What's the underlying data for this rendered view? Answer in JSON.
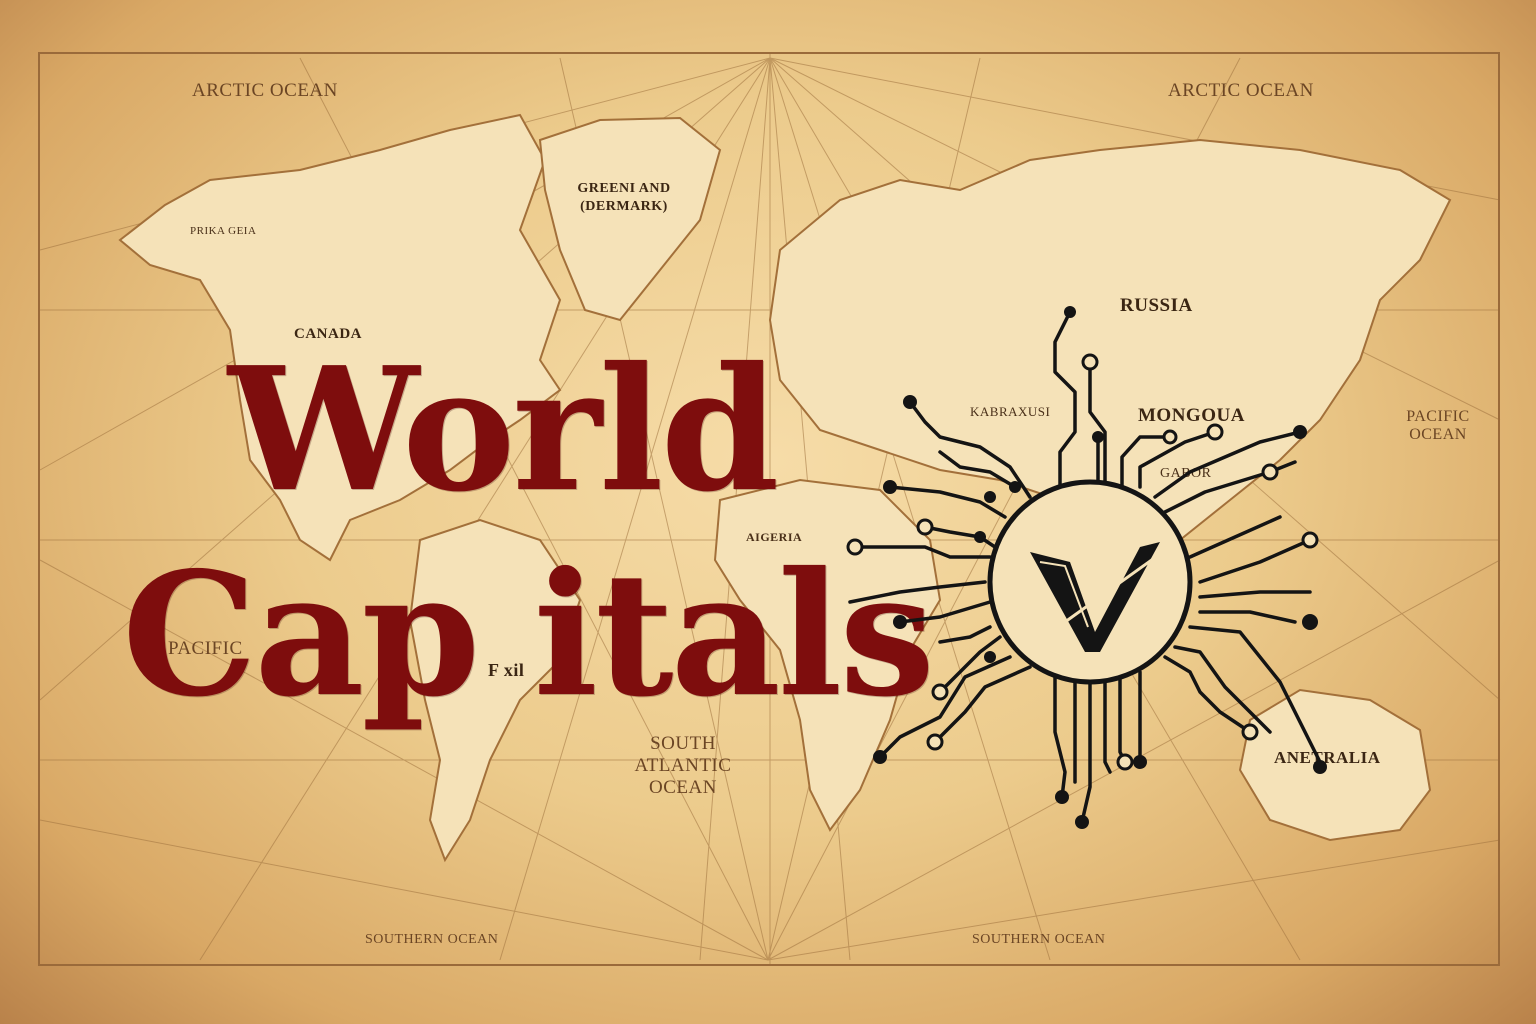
{
  "title": {
    "line1": "World",
    "line2": "Cap itals"
  },
  "oceans": {
    "arctic_left": "ARCTIC OCEAN",
    "arctic_right": "ARCTIC OCEAN",
    "pacific_left": "PACIFIC",
    "pacific_right_1": "PACIFIC",
    "pacific_right_2": "OCEAN",
    "south_atlantic_1": "SOUTH",
    "south_atlantic_2": "ATLANTIC",
    "south_atlantic_3": "OCEAN",
    "southern_left": "SOUTHERN OCEAN",
    "southern_right": "SOUTHERN OCEAN"
  },
  "countries": {
    "greenland_1": "GREENI AND",
    "greenland_2": "(DERMARK)",
    "canada": "CANADA",
    "russia": "RUSSIA",
    "mongolia": "MONGOUA",
    "kazakhstan": "KABRAXUSI",
    "algeria": "AIGERIA",
    "gabor": "GABOR",
    "australia": "ANETRALIA",
    "alaska": "PRIKA GEIA",
    "brazil": "F xil"
  },
  "logo": {
    "letter": "V",
    "icon": "circuit-globe-logo-icon"
  },
  "colors": {
    "title": "#7e0d0d",
    "parchment": "#eccb8c",
    "ink": "#141414",
    "land": "#f5e2b8"
  }
}
